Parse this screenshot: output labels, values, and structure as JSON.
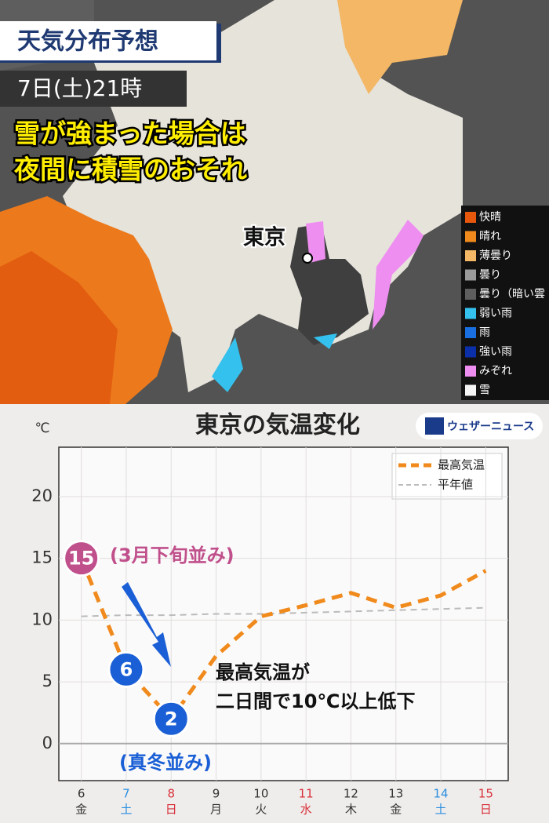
{
  "map": {
    "title": "天気分布予想",
    "time": "7日(土)21時",
    "headline": [
      "雪が強まった場合は",
      "夜間に積雪のおそれ"
    ],
    "city": "東京",
    "legend": [
      {
        "label": "快晴",
        "color": "#e8580c"
      },
      {
        "label": "晴れ",
        "color": "#f08a1c"
      },
      {
        "label": "薄曇り",
        "color": "#f3b765"
      },
      {
        "label": "曇り",
        "color": "#9a9a9a"
      },
      {
        "label": "曇り（暗い雲",
        "color": "#5e5e5e"
      },
      {
        "label": "弱い雨",
        "color": "#35c1ee"
      },
      {
        "label": "雨",
        "color": "#1a6fe0"
      },
      {
        "label": "強い雨",
        "color": "#0b2fa8"
      },
      {
        "label": "みぞれ",
        "color": "#ee8ef0"
      },
      {
        "label": "雪",
        "color": "#f4f4f4"
      }
    ]
  },
  "chart_data": {
    "type": "line",
    "title": "東京の気温変化",
    "brand": "ウェザーニュース",
    "y_unit": "℃",
    "categories": [
      "6",
      "7",
      "8",
      "9",
      "10",
      "11",
      "12",
      "13",
      "14",
      "15"
    ],
    "category_sublabels": [
      "金",
      "土",
      "日",
      "月",
      "火",
      "水",
      "木",
      "金",
      "土",
      "日"
    ],
    "category_colors": [
      "#333333",
      "#2a8ee0",
      "#d8303a",
      "#333333",
      "#333333",
      "#d8303a",
      "#333333",
      "#333333",
      "#2a8ee0",
      "#d8303a"
    ],
    "ylim": [
      -3,
      24
    ],
    "yticks": [
      0,
      5,
      10,
      15,
      20
    ],
    "grid": true,
    "series": [
      {
        "name": "最高気温",
        "color": "#f08a1c",
        "values": [
          15,
          6,
          2,
          7.1,
          10.3,
          11.2,
          12.2,
          11,
          12,
          14
        ],
        "value_labels": [
          "15",
          "6",
          "2",
          null,
          null,
          null,
          null,
          null,
          null,
          null
        ],
        "label_colors": [
          "#c0508c",
          "#1a5fd6",
          "#1a5fd6",
          null,
          null,
          null,
          null,
          null,
          null,
          null
        ]
      },
      {
        "name": "平年値",
        "color": "#bbbbbb",
        "values": [
          10.3,
          10.4,
          10.4,
          10.5,
          10.5,
          10.6,
          10.7,
          10.8,
          10.9,
          11
        ]
      }
    ],
    "annotations": [
      "(3月下旬並み)",
      "(真冬並み)",
      "最高気温が",
      "二日間で10℃以上低下"
    ]
  }
}
